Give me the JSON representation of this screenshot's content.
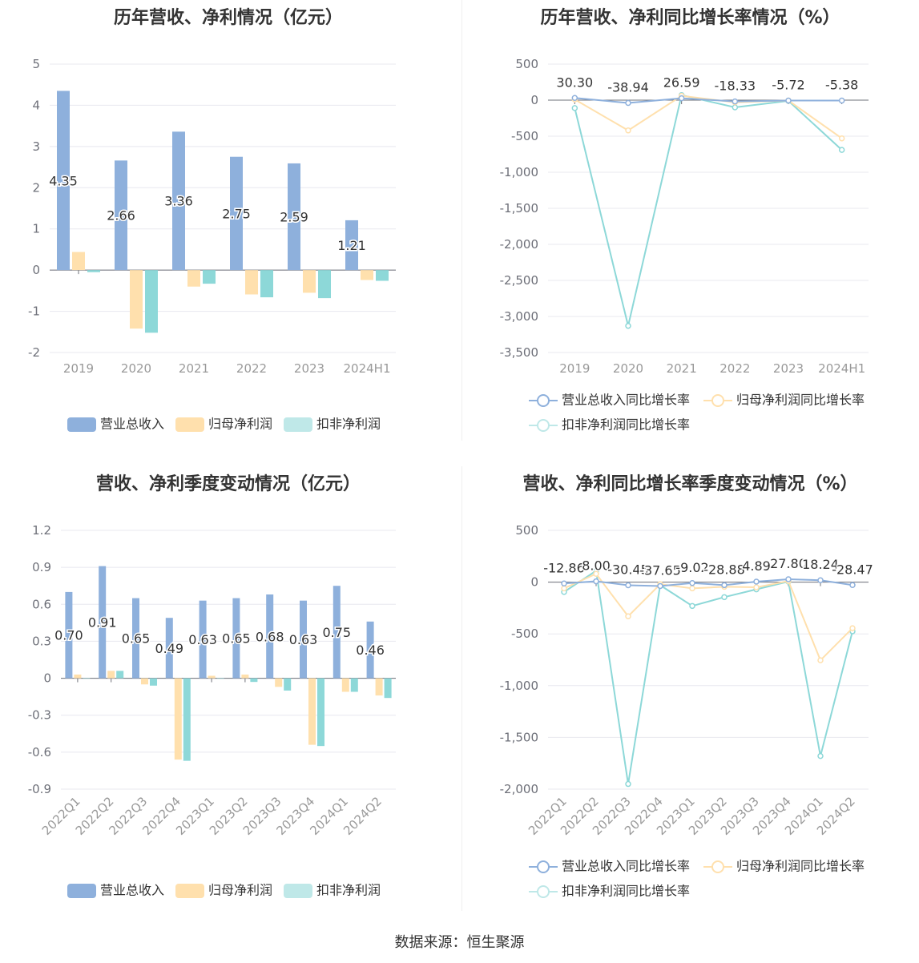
{
  "source": "数据来源：恒生聚源",
  "legend_bar": [
    "营业总收入",
    "归母净利润",
    "扣非净利润"
  ],
  "legend_line": [
    "营业总收入同比增长率",
    "归母净利润同比增长率",
    "扣非净利润同比增长率"
  ],
  "colors": {
    "revenue": "#8eb0dc",
    "net_profit": "#ffe0ad",
    "deducted": "#8dd8d8",
    "grid": "#e8e8ef",
    "axis": "#6e7079",
    "text": "#333333"
  },
  "chart_data": [
    {
      "type": "bar",
      "title": "历年营收、净利情况（亿元）",
      "categories": [
        "2019",
        "2020",
        "2021",
        "2022",
        "2023",
        "2024H1"
      ],
      "ylim": [
        -2,
        5
      ],
      "yticks": [
        "5",
        "4",
        "3",
        "2",
        "1",
        "0",
        "-1",
        "-2"
      ],
      "series": [
        {
          "name": "营业总收入",
          "values": [
            4.35,
            2.66,
            3.36,
            2.75,
            2.59,
            1.21
          ],
          "labels": [
            "4.35",
            "2.66",
            "3.36",
            "2.75",
            "2.59",
            "1.21"
          ]
        },
        {
          "name": "归母净利润",
          "values": [
            0.44,
            -1.42,
            -0.4,
            -0.59,
            -0.55,
            -0.24
          ]
        },
        {
          "name": "扣非净利润",
          "values": [
            -0.05,
            -1.52,
            -0.33,
            -0.66,
            -0.68,
            -0.26
          ]
        }
      ]
    },
    {
      "type": "line",
      "title": "历年营收、净利同比增长率情况（%）",
      "categories": [
        "2019",
        "2020",
        "2021",
        "2022",
        "2023",
        "2024H1"
      ],
      "ylim": [
        -3500,
        500
      ],
      "yticks": [
        "500",
        "0",
        "-500",
        "-1,000",
        "-1,500",
        "-2,000",
        "-2,500",
        "-3,000",
        "-3,500"
      ],
      "series": [
        {
          "name": "营业总收入同比增长率",
          "values": [
            30.3,
            -38.94,
            26.59,
            -18.33,
            -5.72,
            -5.38
          ],
          "labels": [
            "30.30",
            "-38.94",
            "26.59",
            "-18.33",
            "-5.72",
            "-5.38"
          ]
        },
        {
          "name": "归母净利润同比增长率",
          "values": [
            10,
            -420,
            60,
            -30,
            -5,
            -530
          ]
        },
        {
          "name": "扣非净利润同比增长率",
          "values": [
            -110,
            -3130,
            70,
            -100,
            -10,
            -690
          ]
        }
      ]
    },
    {
      "type": "bar",
      "title": "营收、净利季度变动情况（亿元）",
      "categories": [
        "2022Q1",
        "2022Q2",
        "2022Q3",
        "2022Q4",
        "2023Q1",
        "2023Q2",
        "2023Q3",
        "2023Q4",
        "2024Q1",
        "2024Q2"
      ],
      "ylim": [
        -0.9,
        1.2
      ],
      "yticks": [
        "1.2",
        "0.9",
        "0.6",
        "0.3",
        "0",
        "-0.3",
        "-0.6",
        "-0.9"
      ],
      "series": [
        {
          "name": "营业总收入",
          "values": [
            0.7,
            0.91,
            0.65,
            0.49,
            0.63,
            0.65,
            0.68,
            0.63,
            0.75,
            0.46
          ],
          "labels": [
            "0.70",
            "0.91",
            "0.65",
            "0.49",
            "0.63",
            "0.65",
            "0.68",
            "0.63",
            "0.75",
            "0.46"
          ]
        },
        {
          "name": "归母净利润",
          "values": [
            0.03,
            0.06,
            -0.05,
            -0.66,
            0.02,
            0.03,
            -0.07,
            -0.54,
            -0.11,
            -0.14
          ]
        },
        {
          "name": "扣非净利润",
          "values": [
            0.0,
            0.06,
            -0.06,
            -0.67,
            0.0,
            -0.03,
            -0.1,
            -0.55,
            -0.11,
            -0.16
          ]
        }
      ]
    },
    {
      "type": "line",
      "title": "营收、净利同比增长率季度变动情况（%）",
      "categories": [
        "2022Q1",
        "2022Q2",
        "2022Q3",
        "2022Q4",
        "2023Q1",
        "2023Q2",
        "2023Q3",
        "2023Q4",
        "2024Q1",
        "2024Q2"
      ],
      "ylim": [
        -2000,
        500
      ],
      "yticks": [
        "500",
        "0",
        "-500",
        "-1,000",
        "-1,500",
        "-2,000"
      ],
      "series": [
        {
          "name": "营业总收入同比增长率",
          "values": [
            -12.86,
            8.0,
            -30.45,
            -37.65,
            -9.02,
            -28.88,
            4.89,
            27.8,
            18.24,
            -28.47
          ],
          "labels": [
            "-12.86",
            "8.00",
            "-30.45",
            "-37.65",
            "-9.02",
            "-28.88",
            "4.89",
            "27.80",
            "18.24",
            "-28.47"
          ]
        },
        {
          "name": "归母净利润同比增长率",
          "values": [
            -60,
            80,
            -330,
            -20,
            -60,
            -45,
            -50,
            10,
            -755,
            -445
          ]
        },
        {
          "name": "扣非净利润同比增长率",
          "values": [
            -95,
            110,
            -1950,
            -30,
            -230,
            -145,
            -70,
            5,
            -1680,
            -475
          ]
        }
      ]
    }
  ]
}
